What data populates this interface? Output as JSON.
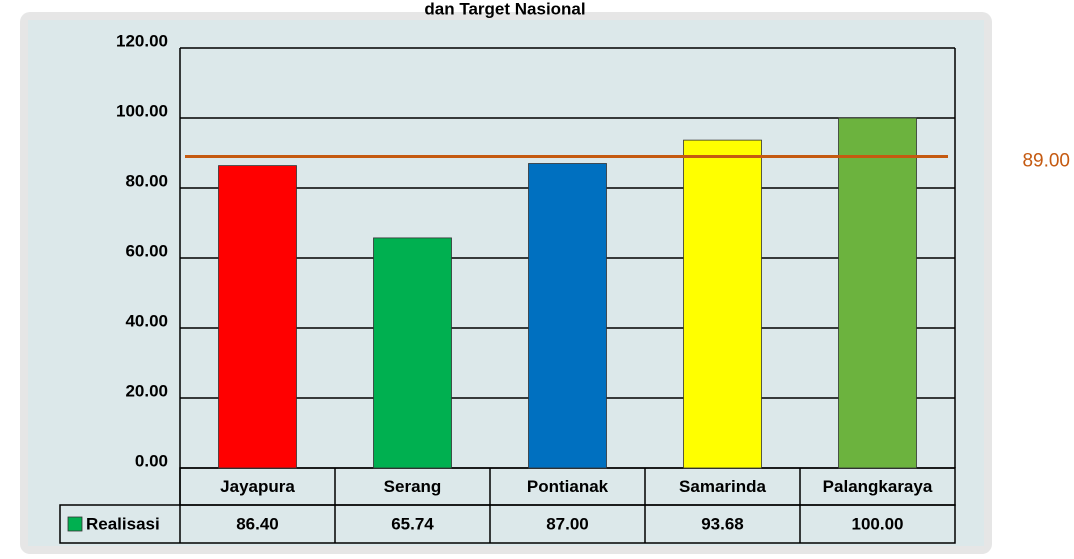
{
  "chart_data": {
    "type": "bar",
    "title": "dan Target Nasional",
    "categories": [
      "Jayapura",
      "Serang",
      "Pontianak",
      "Samarinda",
      "Palangkaraya"
    ],
    "series": [
      {
        "name": "Realisasi",
        "color": "#00b050",
        "values": [
          86.4,
          65.74,
          87.0,
          93.68,
          100.0
        ],
        "value_labels": [
          "86.40",
          "65.74",
          "87.00",
          "93.68",
          "100.00"
        ]
      }
    ],
    "colors": [
      "#ff0000",
      "#00b050",
      "#0070c0",
      "#ffff00",
      "#6cb33e"
    ],
    "target": {
      "value": 89,
      "label": "89.00"
    },
    "target_color": "#c55a11",
    "ylim": [
      0,
      120
    ],
    "yticks": [
      {
        "value": 0,
        "label": "0.00"
      },
      {
        "value": 20,
        "label": "20.00"
      },
      {
        "value": 40,
        "label": "40.00"
      },
      {
        "value": 60,
        "label": "60.00"
      },
      {
        "value": 80,
        "label": "80.00"
      },
      {
        "value": 100,
        "label": "100.00"
      },
      {
        "value": 120,
        "label": "120.00"
      }
    ],
    "grid": true
  }
}
